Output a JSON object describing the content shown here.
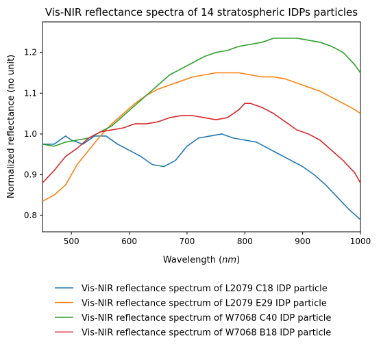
{
  "chart_data": {
    "type": "line",
    "title": "Vis-NIR reflectance spectra of 14 stratospheric IDPs particles",
    "xlabel_text": "Wavelength (",
    "xlabel_unit": "nm",
    "xlabel_close": ")",
    "ylabel": "Normalized reflectance (no unit)",
    "xlim": [
      450,
      1000
    ],
    "ylim": [
      0.76,
      1.275
    ],
    "x_ticks": [
      500,
      600,
      700,
      800,
      900,
      1000
    ],
    "y_ticks": [
      0.8,
      0.9,
      1.0,
      1.1,
      1.2
    ],
    "y_tick_labels": [
      "0.8",
      "0.9",
      "1.0",
      "1.1",
      "1.2"
    ],
    "grid": false,
    "legend_position": "bottom-center",
    "series": [
      {
        "name": "Vis-NIR reflectance spectrum of L2079 C18 IDP particle",
        "color": "#1f77b4",
        "x": [
          450,
          470,
          490,
          500,
          520,
          540,
          560,
          580,
          600,
          620,
          640,
          660,
          680,
          700,
          720,
          740,
          760,
          780,
          800,
          820,
          840,
          860,
          880,
          900,
          920,
          940,
          960,
          980,
          1000
        ],
        "y": [
          0.975,
          0.975,
          0.995,
          0.985,
          0.975,
          0.995,
          0.995,
          0.975,
          0.96,
          0.945,
          0.925,
          0.92,
          0.935,
          0.97,
          0.99,
          0.995,
          1.0,
          0.99,
          0.985,
          0.98,
          0.965,
          0.95,
          0.935,
          0.92,
          0.9,
          0.875,
          0.845,
          0.815,
          0.79
        ]
      },
      {
        "name": "Vis-NIR reflectance spectrum of L2079 E29 IDP particle",
        "color": "#ff7f0e",
        "x": [
          450,
          470,
          490,
          510,
          530,
          550,
          570,
          590,
          610,
          630,
          650,
          670,
          690,
          710,
          730,
          750,
          770,
          790,
          810,
          830,
          850,
          870,
          890,
          910,
          930,
          950,
          970,
          990,
          1000
        ],
        "y": [
          0.835,
          0.85,
          0.875,
          0.925,
          0.96,
          0.995,
          1.025,
          1.05,
          1.075,
          1.095,
          1.11,
          1.12,
          1.13,
          1.14,
          1.145,
          1.15,
          1.15,
          1.15,
          1.145,
          1.14,
          1.14,
          1.135,
          1.125,
          1.115,
          1.105,
          1.09,
          1.075,
          1.06,
          1.05
        ]
      },
      {
        "name": "Vis-NIR reflectance spectrum of W7068 C40 IDP particle",
        "color": "#2ca02c",
        "x": [
          450,
          470,
          490,
          510,
          530,
          550,
          570,
          590,
          610,
          630,
          650,
          670,
          690,
          710,
          730,
          750,
          770,
          790,
          810,
          830,
          850,
          870,
          890,
          910,
          930,
          950,
          970,
          990,
          1000
        ],
        "y": [
          0.975,
          0.97,
          0.98,
          0.985,
          0.99,
          1.005,
          1.02,
          1.045,
          1.07,
          1.095,
          1.12,
          1.145,
          1.16,
          1.175,
          1.19,
          1.2,
          1.205,
          1.215,
          1.22,
          1.225,
          1.235,
          1.235,
          1.235,
          1.23,
          1.225,
          1.215,
          1.2,
          1.17,
          1.15
        ]
      },
      {
        "name": "Vis-NIR reflectance spectrum of W7068 B18 IDP particle",
        "color": "#d62728",
        "x": [
          450,
          470,
          490,
          510,
          530,
          550,
          570,
          590,
          610,
          630,
          650,
          670,
          690,
          710,
          730,
          750,
          770,
          790,
          800,
          810,
          830,
          850,
          870,
          890,
          910,
          930,
          950,
          970,
          990,
          1000
        ],
        "y": [
          0.88,
          0.91,
          0.945,
          0.965,
          0.99,
          1.005,
          1.01,
          1.015,
          1.025,
          1.025,
          1.03,
          1.04,
          1.045,
          1.045,
          1.04,
          1.035,
          1.04,
          1.06,
          1.075,
          1.075,
          1.065,
          1.05,
          1.03,
          1.01,
          1.0,
          0.985,
          0.96,
          0.935,
          0.905,
          0.88
        ]
      }
    ]
  }
}
